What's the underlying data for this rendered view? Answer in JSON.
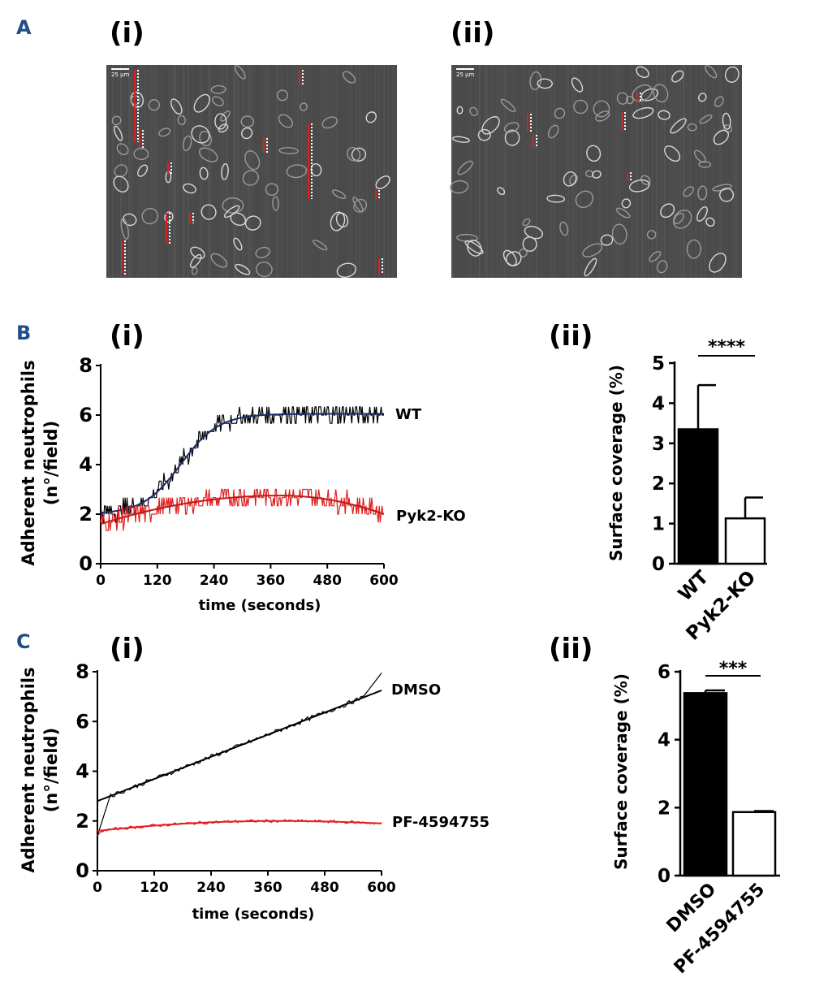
{
  "panels": {
    "A": {
      "letter": "A",
      "sub_i": "(i)",
      "sub_ii": "(ii)",
      "scale_i": "25 µm",
      "scale_ii": "25 µm"
    },
    "B": {
      "letter": "B",
      "sub_i": "(i)",
      "sub_ii": "(ii)"
    },
    "C": {
      "letter": "C",
      "sub_i": "(i)",
      "sub_ii": "(ii)"
    }
  },
  "colors": {
    "panel_letter": "#1f4e8c",
    "wt_black": "#000000",
    "fit_navy": "#1c2a6b",
    "red": "#e02020"
  },
  "chart_data": [
    {
      "id": "B_i",
      "type": "line",
      "xlabel": "time (seconds)",
      "ylabel_line1": "Adherent neutrophils",
      "ylabel_line2": "(n°/field)",
      "xticks": [
        0,
        120,
        240,
        360,
        480,
        600
      ],
      "yticks": [
        0,
        2,
        4,
        6,
        8
      ],
      "xlim": [
        0,
        600
      ],
      "ylim": [
        0,
        8
      ],
      "series": [
        {
          "name": "WT",
          "raw_color": "#000000",
          "fit_color": "#1c2a6b",
          "fit": {
            "kind": "sigmoid",
            "base": 2.0,
            "top": 6.05,
            "mid": 170,
            "k": 0.025
          },
          "noise": 0.35
        },
        {
          "name": "Pyk2-KO",
          "raw_color": "#e02020",
          "fit_color": "#c01818",
          "fit": {
            "kind": "quad",
            "start": 1.6,
            "peak": 2.75,
            "peak_x": 380,
            "end": 2.0
          },
          "noise": 0.4
        }
      ]
    },
    {
      "id": "B_ii",
      "type": "bar",
      "ylabel": "Surface coverage (%)",
      "categories": [
        "WT",
        "Pyk2-KO"
      ],
      "values": [
        3.35,
        1.13
      ],
      "errors": [
        1.1,
        0.52
      ],
      "fills": [
        "#000000",
        "#ffffff"
      ],
      "yticks": [
        0,
        1,
        2,
        3,
        4,
        5
      ],
      "ylim": [
        0,
        5
      ],
      "significance": "****"
    },
    {
      "id": "C_i",
      "type": "line",
      "xlabel": "time (seconds)",
      "ylabel_line1": "Adherent neutrophils",
      "ylabel_line2": "(n°/field)",
      "xticks": [
        0,
        120,
        240,
        360,
        480,
        600
      ],
      "yticks": [
        0,
        2,
        4,
        6,
        8
      ],
      "xlim": [
        0,
        600
      ],
      "ylim": [
        0,
        8
      ],
      "series": [
        {
          "name": "DMSO",
          "raw_color": "#000000",
          "fit_color": "#000000",
          "fit": {
            "kind": "linear",
            "start": 2.8,
            "end": 7.25
          },
          "raw": {
            "start": 1.4,
            "jump_to": 3.2,
            "end": 7.25,
            "spike_end": 7.95
          }
        },
        {
          "name": "PF-4594755",
          "raw_color": "#e02020",
          "fit_color": "#e02020",
          "fit": {
            "kind": "quad",
            "start": 1.6,
            "peak": 2.0,
            "peak_x": 380,
            "end": 1.9
          },
          "raw": {
            "start": 1.4
          }
        }
      ]
    },
    {
      "id": "C_ii",
      "type": "bar",
      "ylabel": "Surface coverage (%)",
      "categories": [
        "DMSO",
        "PF-4594755"
      ],
      "values": [
        5.37,
        1.87
      ],
      "errors": [
        0.08,
        0.03
      ],
      "fills": [
        "#000000",
        "#ffffff"
      ],
      "yticks": [
        0,
        2,
        4,
        6
      ],
      "ylim": [
        0,
        6
      ],
      "significance": "***"
    }
  ]
}
